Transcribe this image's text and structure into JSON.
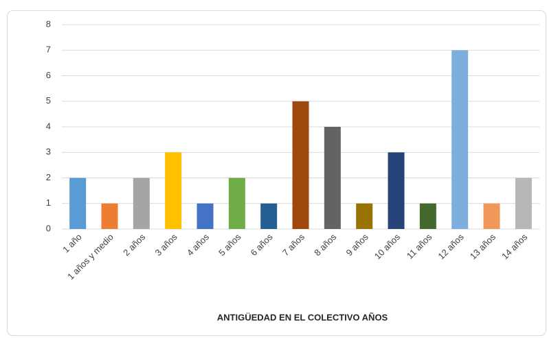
{
  "chart_data": {
    "type": "bar",
    "categories": [
      "1 año",
      "1 años y medio",
      "2 años",
      "3 años",
      "4 años",
      "5 años",
      "6 años",
      "7 años",
      "8 años",
      "9 años",
      "10 años",
      "11 años",
      "12 años",
      "13 años",
      "14 años"
    ],
    "values": [
      2,
      1,
      2,
      3,
      1,
      2,
      1,
      5,
      4,
      1,
      3,
      1,
      7,
      1,
      2
    ],
    "colors": [
      "#5b9bd5",
      "#ed7d31",
      "#a5a5a5",
      "#ffc000",
      "#4472c4",
      "#70ad47",
      "#255e91",
      "#9e480e",
      "#636363",
      "#997300",
      "#264478",
      "#43682b",
      "#7cafdd",
      "#f1975a",
      "#b7b7b7"
    ],
    "x_label": "ANTIGÜEDAD EN EL COLECTIVO AÑOS",
    "ylim": [
      0,
      8
    ],
    "yticks": [
      0,
      1,
      2,
      3,
      4,
      5,
      6,
      7,
      8
    ],
    "grid": true
  }
}
